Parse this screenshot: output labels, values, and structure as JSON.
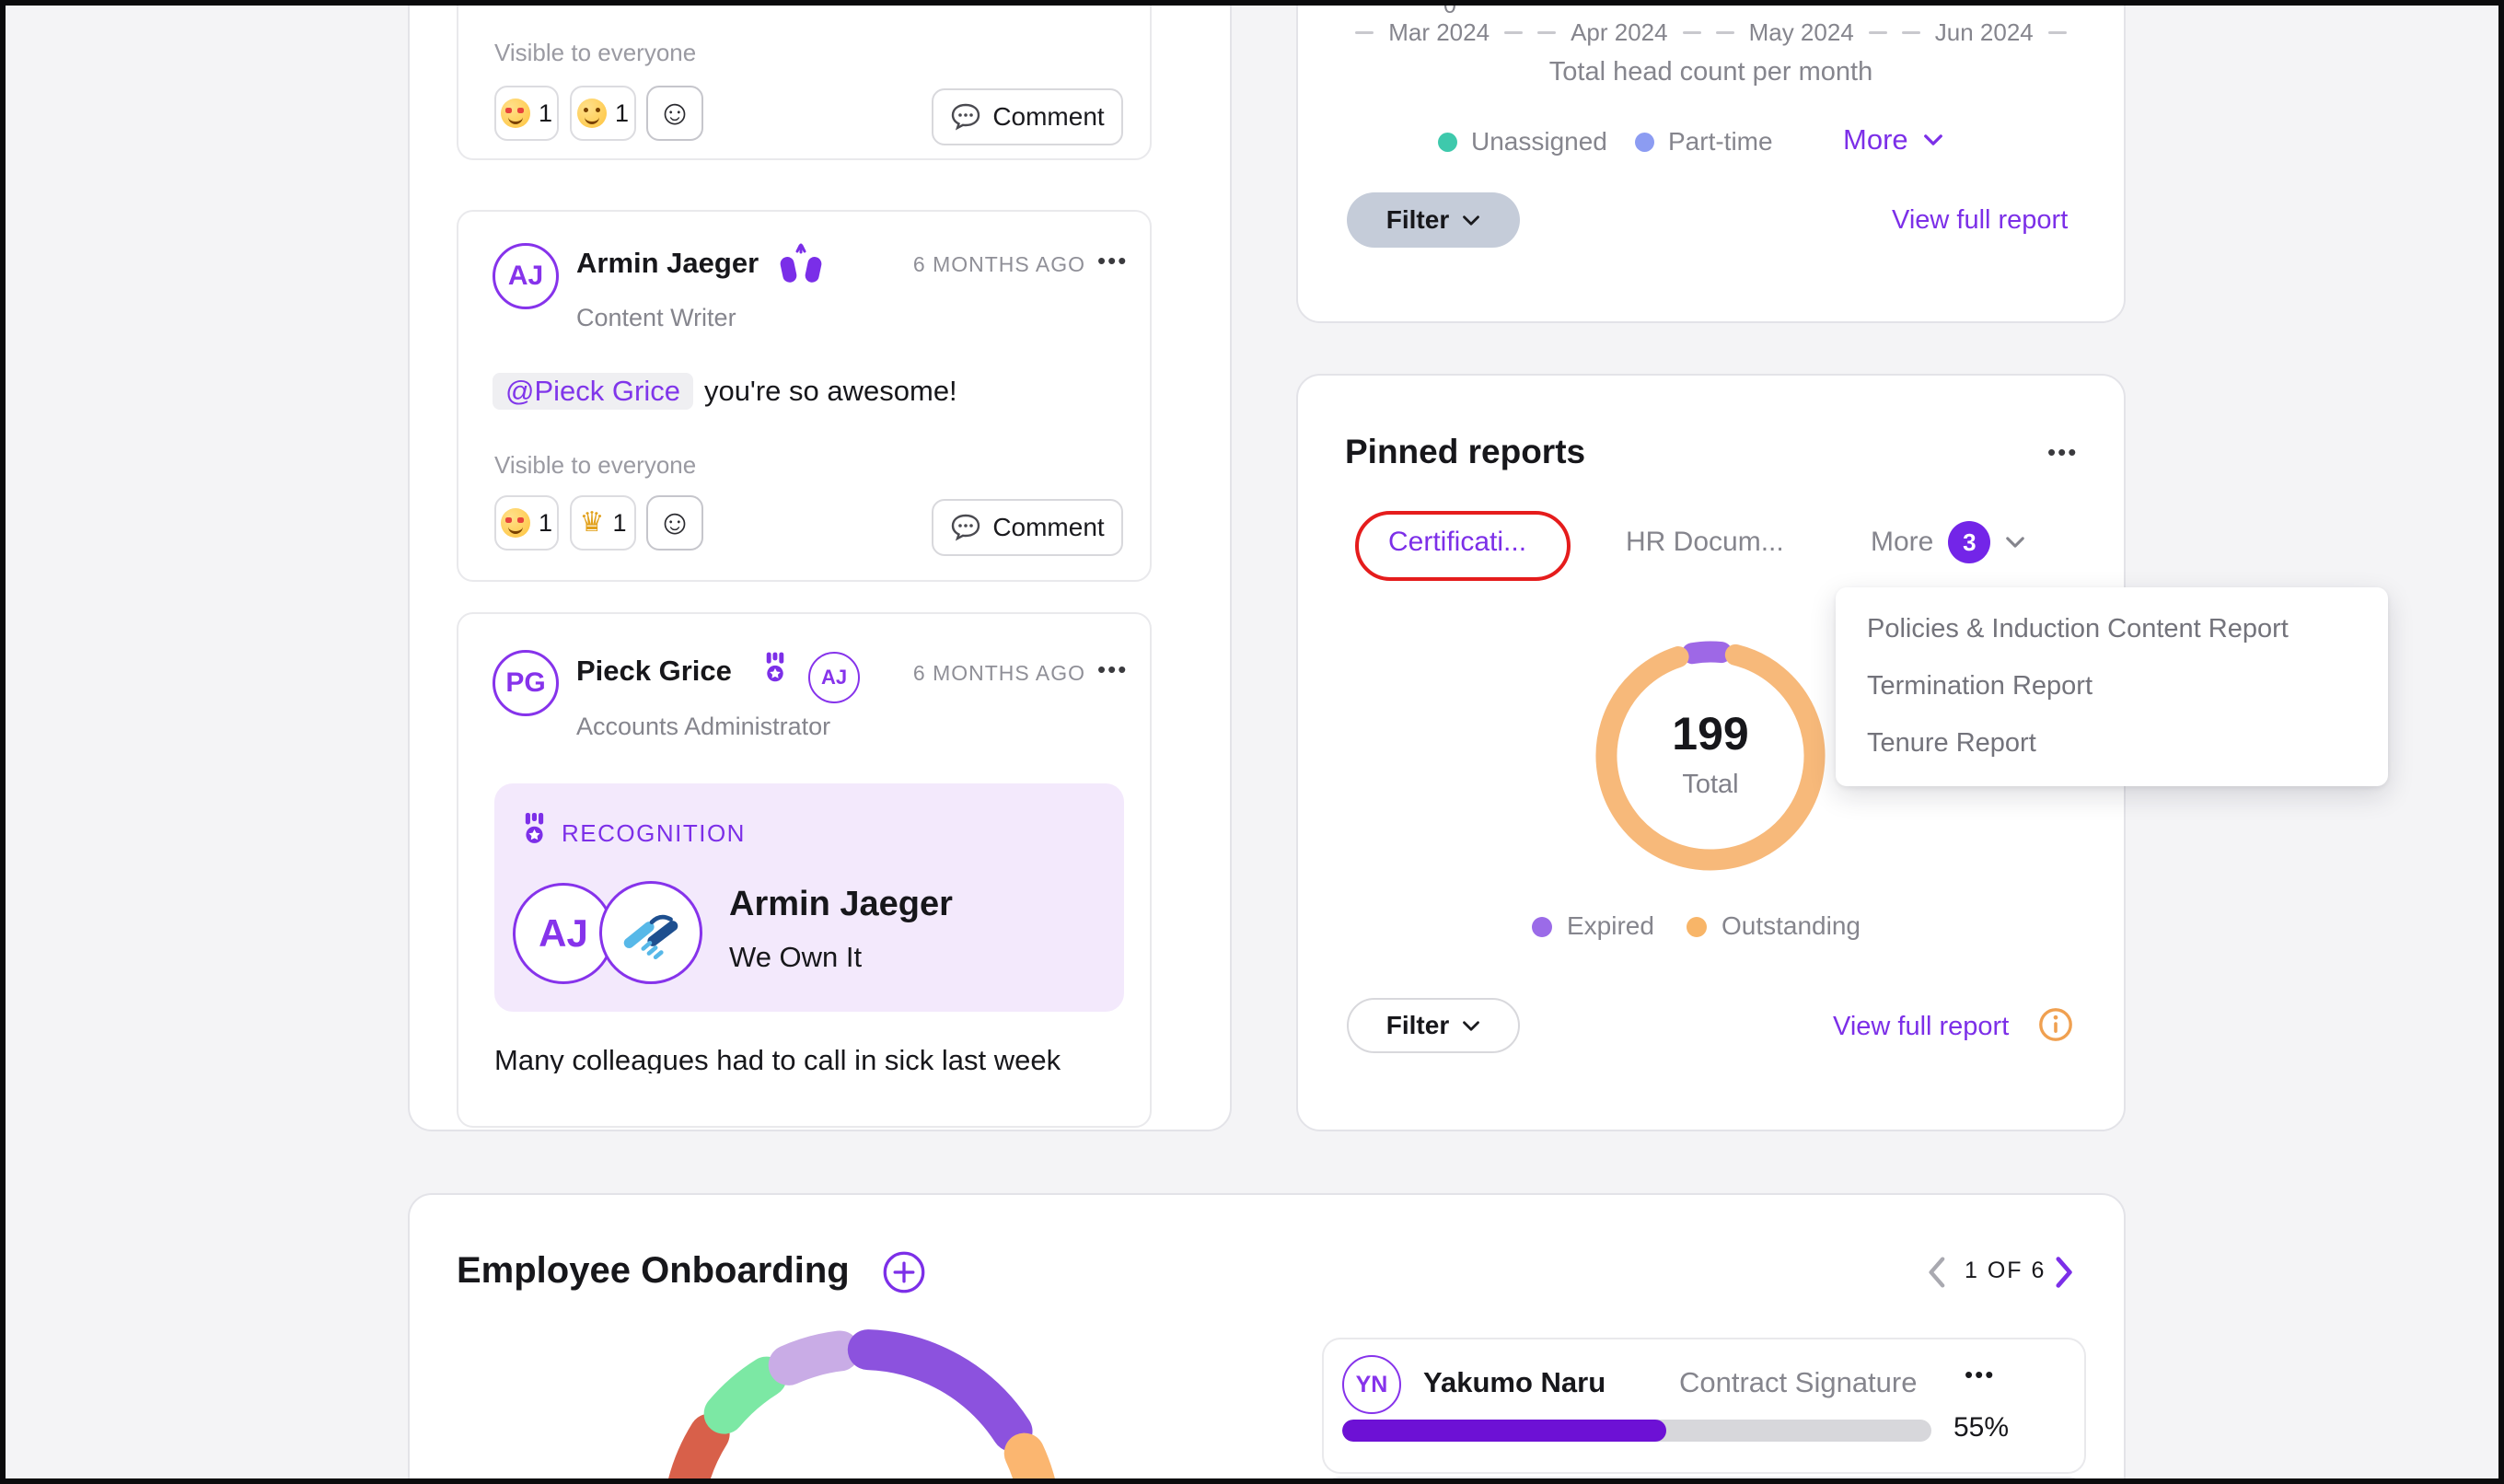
{
  "theme": {
    "background": "#F4F4F6",
    "accent_purple": "#7C2FE8",
    "badge_purple": "#7325E8",
    "progress_purple": "#6D11D5",
    "avatar_purple": "#8633EB",
    "annotation_red": "#E51C1C",
    "info_orange": "#F0A050",
    "recognition_bg": "#F3E9FC"
  },
  "feed": {
    "post_top": {
      "visibility": "Visible to everyone",
      "reactions": [
        {
          "icon": "heart-eyes-emoji",
          "count": "1"
        },
        {
          "icon": "relieved-emoji",
          "count": "1"
        }
      ],
      "comment_label": "Comment"
    },
    "post_armin": {
      "avatar_initials": "AJ",
      "author": "Armin Jaeger",
      "role": "Content Writer",
      "timestamp": "6 MONTHS AGO",
      "menu_icon": "•••",
      "mention": "@Pieck Grice",
      "message": "you're so awesome!",
      "visibility": "Visible to everyone",
      "reactions": [
        {
          "icon": "heart-eyes-emoji",
          "count": "1"
        },
        {
          "icon": "crown-emoji",
          "count": "1"
        }
      ],
      "comment_label": "Comment"
    },
    "post_pieck": {
      "avatar_initials": "PG",
      "author": "Pieck Grice",
      "role": "Accounts Administrator",
      "timestamp": "6 MONTHS AGO",
      "menu_icon": "•••",
      "badge_initials": "AJ",
      "recognition": {
        "label": "RECOGNITION",
        "recipient_initials": "AJ",
        "recipient_name": "Armin Jaeger",
        "award_title": "We Own It"
      },
      "body_text_clipped": "Many colleagues had to call in sick last week"
    }
  },
  "headcount": {
    "y_axis_fragment": "0",
    "x_labels": [
      "Mar 2024",
      "Apr 2024",
      "May 2024",
      "Jun 2024"
    ],
    "caption": "Total head count per month",
    "legend": [
      {
        "label": "Unassigned",
        "color": "#3EC9AC"
      },
      {
        "label": "Part-time",
        "color": "#8C9CF2"
      }
    ],
    "more_label": "More",
    "filter_label": "Filter",
    "view_report_label": "View full report"
  },
  "pinned_reports": {
    "title": "Pinned reports",
    "menu_icon": "•••",
    "tabs": [
      {
        "label": "Certificati...",
        "active": true,
        "annotated": true
      },
      {
        "label": "HR Docum...",
        "active": false
      },
      {
        "label": "More",
        "badge_count": "3"
      }
    ],
    "dropdown_items": [
      "Policies & Induction Content Report",
      "Termination Report",
      "Tenure Report"
    ],
    "donut_center_value": "199",
    "donut_center_label": "Total",
    "legend": [
      {
        "label": "Expired",
        "color": "#9B6BE8"
      },
      {
        "label": "Outstanding",
        "color": "#F8B568"
      }
    ],
    "filter_label": "Filter",
    "view_report_label": "View full report"
  },
  "onboarding": {
    "title": "Employee Onboarding",
    "pagination_label": "1 OF 6",
    "employee": {
      "avatar_initials": "YN",
      "name": "Yakumo Naru",
      "stage": "Contract Signature",
      "menu_icon": "•••",
      "progress_percent": 55,
      "progress_label": "55%"
    }
  },
  "chart_data": [
    {
      "type": "line",
      "title": "Total head count per month",
      "categories": [
        "Mar 2024",
        "Apr 2024",
        "May 2024",
        "Jun 2024"
      ],
      "series": [
        {
          "name": "Unassigned"
        },
        {
          "name": "Part-time"
        }
      ],
      "legend_position": "bottom",
      "note": "chart plot area cropped above viewport; only x-axis labels, caption and legend visible"
    },
    {
      "type": "donut",
      "title": "Certifications report",
      "center_value": 199,
      "center_label": "Total",
      "segments": [
        {
          "label": "Expired",
          "value": 9,
          "color": "#9E68E6",
          "arc_start_deg": -10,
          "arc_end_deg": 6
        },
        {
          "label": "Outstanding",
          "value": 190,
          "color": "#F7B97A",
          "arc_start_deg": 14,
          "arc_end_deg": 342
        }
      ]
    },
    {
      "type": "donut",
      "title": "Employee Onboarding status ring (partially visible)",
      "segments": [
        {
          "label": "segment-1",
          "color": "#D8604A",
          "arc_start_deg": -78,
          "arc_end_deg": -58
        },
        {
          "label": "segment-2",
          "color": "#7CE8A4",
          "arc_start_deg": -50,
          "arc_end_deg": -32
        },
        {
          "label": "segment-3",
          "color": "#C9ACE6",
          "arc_start_deg": -24,
          "arc_end_deg": -7
        },
        {
          "label": "segment-4",
          "color": "#8C52DE",
          "arc_start_deg": 2,
          "arc_end_deg": 57
        },
        {
          "label": "segment-5",
          "color": "#FBB670",
          "arc_start_deg": 65,
          "arc_end_deg": 95
        }
      ]
    }
  ]
}
